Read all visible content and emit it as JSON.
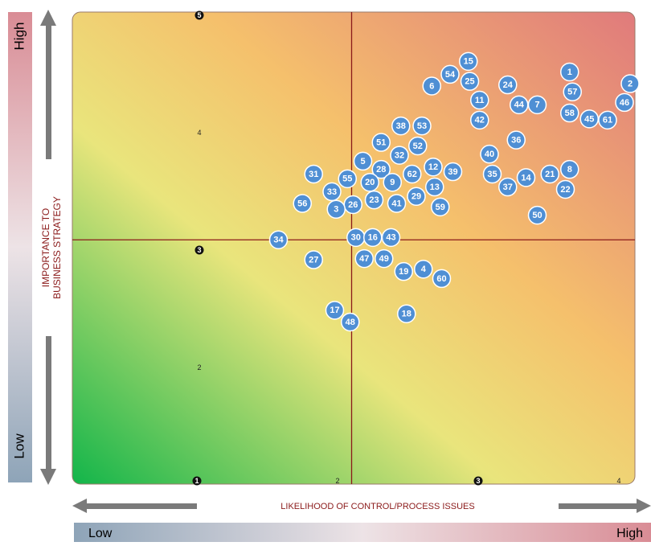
{
  "chart_data": {
    "type": "scatter",
    "x_axis_label": "LIKELIHOOD OF CONTROL/PROCESS ISSUES",
    "y_axis_label": [
      "IMPORTANCE TO",
      "BUSINESS STRATEGY"
    ],
    "y_high": "High",
    "y_low": "Low",
    "x_low": "Low",
    "x_high": "High",
    "xlim": [
      0.1,
      4.1
    ],
    "ylim": [
      1,
      5
    ],
    "xticks": [
      1,
      2,
      3,
      4
    ],
    "yticks": [
      2,
      3,
      4,
      5
    ],
    "tick_badge": "odd",
    "reference_lines": {
      "x": 2.1,
      "y": 3.06
    },
    "color": "#4f8fd4",
    "labels": [
      "1",
      "2",
      "57",
      "46",
      "15",
      "54",
      "25",
      "6",
      "24",
      "11",
      "44",
      "7",
      "58",
      "45",
      "61",
      "42",
      "38",
      "53",
      "36",
      "51",
      "52",
      "40",
      "32",
      "5",
      "28",
      "12",
      "39",
      "62",
      "31",
      "35",
      "14",
      "21",
      "8",
      "55",
      "20",
      "9",
      "13",
      "37",
      "22",
      "33",
      "29",
      "23",
      "41",
      "56",
      "26",
      "3",
      "59",
      "50",
      "34",
      "30",
      "16",
      "43",
      "27",
      "47",
      "49",
      "19",
      "4",
      "60",
      "17",
      "48",
      "18"
    ],
    "x": [
      3.65,
      4.08,
      3.67,
      4.04,
      2.93,
      2.8,
      2.94,
      2.67,
      3.21,
      3.01,
      3.29,
      3.42,
      3.65,
      3.79,
      3.92,
      3.01,
      2.45,
      2.6,
      3.27,
      2.31,
      2.57,
      3.08,
      2.44,
      2.18,
      2.31,
      2.68,
      2.82,
      2.53,
      1.83,
      3.1,
      3.34,
      3.51,
      3.65,
      2.07,
      2.23,
      2.39,
      2.69,
      3.21,
      3.62,
      1.96,
      2.56,
      2.26,
      2.42,
      1.75,
      2.11,
      1.99,
      2.73,
      3.42,
      1.58,
      2.13,
      2.25,
      2.38,
      1.83,
      2.19,
      2.33,
      2.47,
      2.61,
      2.74,
      1.98,
      2.09,
      2.49
    ],
    "y": [
      4.49,
      4.39,
      4.32,
      4.23,
      4.58,
      4.47,
      4.41,
      4.37,
      4.38,
      4.25,
      4.21,
      4.21,
      4.14,
      4.09,
      4.08,
      4.08,
      4.03,
      4.03,
      3.91,
      3.89,
      3.86,
      3.79,
      3.78,
      3.73,
      3.66,
      3.68,
      3.64,
      3.62,
      3.62,
      3.62,
      3.59,
      3.62,
      3.66,
      3.58,
      3.55,
      3.55,
      3.51,
      3.51,
      3.49,
      3.47,
      3.43,
      3.4,
      3.37,
      3.37,
      3.36,
      3.32,
      3.34,
      3.27,
      3.06,
      3.08,
      3.08,
      3.08,
      2.89,
      2.9,
      2.9,
      2.79,
      2.81,
      2.73,
      2.46,
      2.36,
      2.43
    ]
  }
}
